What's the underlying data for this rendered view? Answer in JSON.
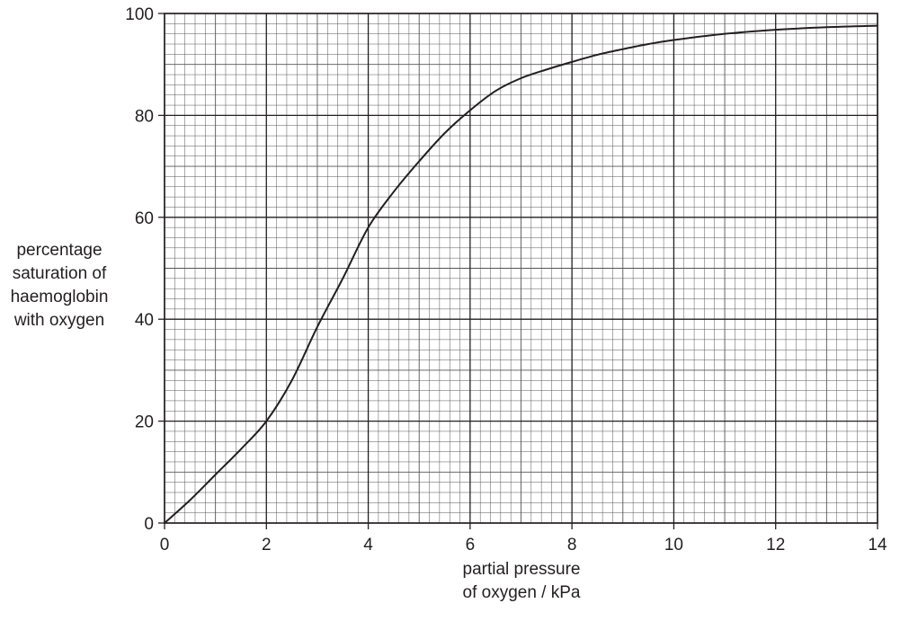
{
  "chart_data": {
    "type": "line",
    "title": "",
    "ylabel_lines": [
      "percentage",
      "saturation of",
      "haemoglobin",
      "with oxygen"
    ],
    "xlabel_lines": [
      "partial pressure",
      "of oxygen / kPa"
    ],
    "xlim": [
      0,
      14
    ],
    "ylim": [
      0,
      100
    ],
    "x_ticks": [
      0,
      2,
      4,
      6,
      8,
      10,
      12,
      14
    ],
    "y_ticks": [
      0,
      20,
      40,
      60,
      80,
      100
    ],
    "x_tick_labels": [
      "0",
      "2",
      "4",
      "6",
      "8",
      "10",
      "12",
      "14"
    ],
    "y_tick_labels": [
      "0",
      "20",
      "40",
      "60",
      "80",
      "100"
    ],
    "grid": {
      "major_x": 2,
      "minor_x": 0.2,
      "major_y": 20,
      "minor_y": 2
    },
    "legend": "none",
    "series": [
      {
        "x": [
          0,
          0.5,
          1,
          1.5,
          2,
          2.5,
          3,
          3.5,
          4,
          4.5,
          5,
          5.5,
          6,
          6.5,
          7,
          7.5,
          8,
          8.5,
          9,
          9.5,
          10,
          11,
          12,
          13,
          14
        ],
        "y": [
          0,
          4.5,
          9.5,
          14.5,
          20,
          28,
          38.5,
          48,
          58,
          65,
          71,
          76.5,
          81,
          84.8,
          87.3,
          89,
          90.5,
          91.9,
          93,
          94,
          94.8,
          96,
          96.8,
          97.3,
          97.6
        ],
        "color": "#231f20"
      }
    ]
  }
}
